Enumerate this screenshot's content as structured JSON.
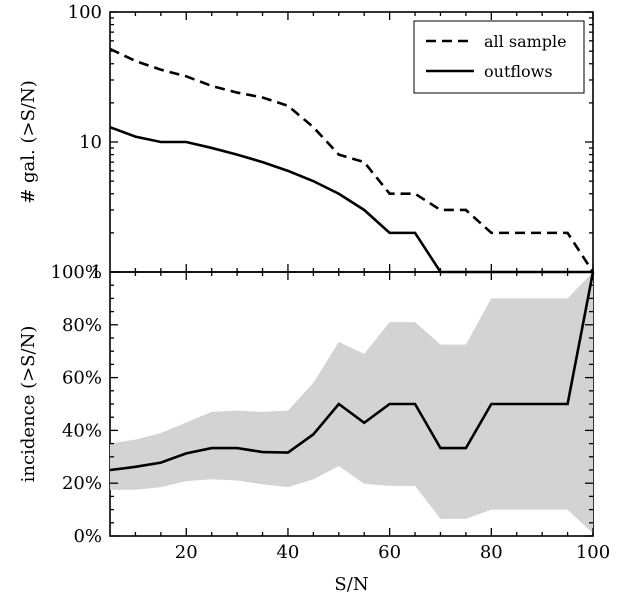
{
  "chart_data": [
    {
      "type": "line",
      "panel": "top",
      "ylabel": "# gal. (>S/N)",
      "xlabel": "",
      "y_scale": "log",
      "xlim": [
        5,
        100
      ],
      "ylim": [
        1,
        100
      ],
      "y_ticks": [
        1,
        10,
        100
      ],
      "y_tick_labels": [
        "1",
        "10",
        "100"
      ],
      "legend": {
        "position": "top-right",
        "items": [
          "all sample",
          "outflows"
        ]
      },
      "series": [
        {
          "name": "all sample",
          "style": "dashed",
          "color": "#000000",
          "x": [
            5,
            10,
            15,
            20,
            25,
            30,
            35,
            40,
            45,
            50,
            55,
            60,
            65,
            70,
            75,
            80,
            85,
            90,
            95,
            100
          ],
          "y": [
            52,
            42,
            36,
            32,
            27,
            24,
            22,
            19,
            13,
            8,
            7,
            4,
            4,
            3,
            3,
            2,
            2,
            2,
            2,
            1
          ]
        },
        {
          "name": "outflows",
          "style": "solid",
          "color": "#000000",
          "x": [
            5,
            10,
            15,
            20,
            25,
            30,
            35,
            40,
            45,
            50,
            55,
            60,
            65,
            70,
            75,
            80,
            85,
            90,
            95,
            100
          ],
          "y": [
            13,
            11,
            10,
            10,
            9,
            8,
            7,
            6,
            5,
            4,
            3,
            2,
            2,
            1,
            1,
            1,
            1,
            1,
            1,
            1
          ]
        }
      ]
    },
    {
      "type": "area",
      "panel": "bottom",
      "xlabel": "S/N",
      "ylabel": "incidence (>S/N)",
      "xlim": [
        5,
        100
      ],
      "ylim": [
        0,
        100
      ],
      "x_ticks": [
        20,
        40,
        60,
        80,
        100
      ],
      "x_tick_labels": [
        "20",
        "40",
        "60",
        "80",
        "100"
      ],
      "y_ticks": [
        0,
        20,
        40,
        60,
        80,
        100
      ],
      "y_tick_labels": [
        "0%",
        "20%",
        "40%",
        "60%",
        "80%",
        "100%"
      ],
      "band_color": "#d3d3d3",
      "line_color": "#000000",
      "x": [
        5,
        10,
        15,
        20,
        25,
        30,
        35,
        40,
        45,
        50,
        55,
        60,
        65,
        70,
        75,
        80,
        85,
        90,
        95,
        100
      ],
      "incidence": [
        25,
        26.2,
        27.8,
        31.3,
        33.3,
        33.3,
        31.8,
        31.6,
        38.5,
        50,
        42.9,
        50,
        50,
        33.3,
        33.3,
        50,
        50,
        50,
        50,
        100
      ],
      "lower": [
        17.5,
        17.5,
        18.5,
        20.8,
        21.5,
        21,
        19.6,
        18.5,
        21.5,
        26.5,
        19.8,
        19,
        19,
        6.5,
        6.5,
        10,
        10,
        10,
        10,
        1
      ],
      "upper": [
        35,
        36.5,
        39,
        43,
        47,
        47.5,
        47,
        47.5,
        58,
        73.5,
        69,
        81,
        81,
        72.5,
        72.5,
        90,
        90,
        90,
        90,
        100
      ]
    }
  ]
}
